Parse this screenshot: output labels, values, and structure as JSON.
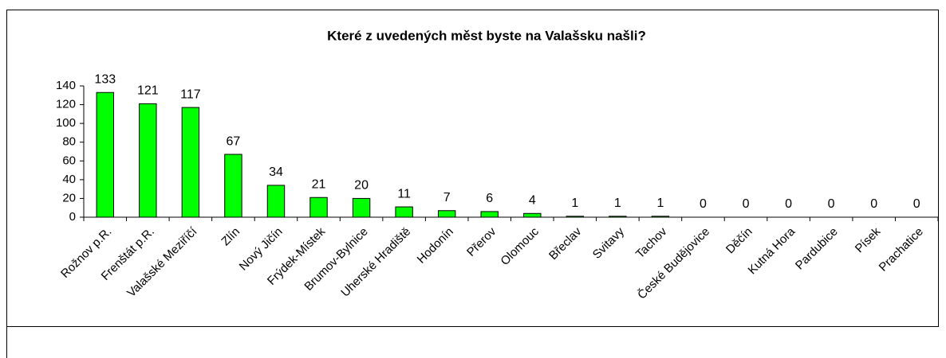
{
  "chart_data": {
    "type": "bar",
    "title": "Které z uvedených měst byste na Valašsku našli?",
    "categories": [
      "Rožnov p.R.",
      "Frenštát p.R.",
      "Valašské  Meziříčí",
      "Zlín",
      "Nový Jičín",
      "Frýdek-Místek",
      "Brumov-Bylnice",
      "Uherské Hradiště",
      "Hodonín",
      "Přerov",
      "Olomouc",
      "Břeclav",
      "Svitavy",
      "Tachov",
      "České Budějovice",
      "Děčín",
      "Kutná Hora",
      "Pardubice",
      "Písek",
      "Prachatice"
    ],
    "values": [
      133,
      121,
      117,
      67,
      34,
      21,
      20,
      11,
      7,
      6,
      4,
      1,
      1,
      1,
      0,
      0,
      0,
      0,
      0,
      0
    ],
    "color": "#00ff00",
    "ylim": [
      0,
      140
    ],
    "yticks": [
      0,
      20,
      40,
      60,
      80,
      100,
      120,
      140
    ],
    "grid": false
  }
}
